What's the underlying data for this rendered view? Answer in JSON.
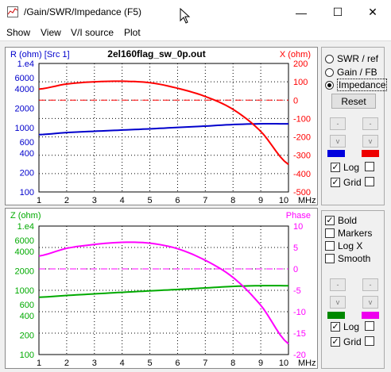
{
  "window": {
    "title": "/Gain/SWR/Impedance (F5)",
    "minimize": "—",
    "maximize": "☐",
    "close": "✕"
  },
  "menu": [
    "Show",
    "View",
    "V/I source",
    "Plot"
  ],
  "top_chart": {
    "filename": "2el160flag_sw_0p.out",
    "left_label": "R (ohm) [Src 1]",
    "right_label": "X (ohm)",
    "left_ticks": [
      "1.e4",
      "6000",
      "4000",
      "2000",
      "1000",
      "600",
      "400",
      "200",
      "100"
    ],
    "right_ticks": [
      "200",
      "100",
      "0",
      "-100",
      "-200",
      "-300",
      "-400",
      "-500"
    ],
    "x_ticks": [
      "1",
      "2",
      "3",
      "4",
      "5",
      "6",
      "7",
      "8",
      "9",
      "10"
    ],
    "x_unit": "MHz",
    "colors": {
      "left": "#0000cc",
      "right": "#ff0000"
    }
  },
  "bottom_chart": {
    "left_label": "Z (ohm)",
    "right_label": "Phase",
    "left_ticks": [
      "1.e4",
      "6000",
      "4000",
      "2000",
      "1000",
      "600",
      "400",
      "200",
      "100"
    ],
    "right_ticks": [
      "10",
      "5",
      "0",
      "-5",
      "-10",
      "-15",
      "-20"
    ],
    "x_ticks": [
      "1",
      "2",
      "3",
      "4",
      "5",
      "6",
      "7",
      "8",
      "9",
      "10"
    ],
    "x_unit": "MHz",
    "colors": {
      "left": "#00aa00",
      "right": "#ff00ff"
    }
  },
  "chart_data": [
    {
      "type": "line",
      "x": [
        1,
        2,
        3,
        4,
        5,
        6,
        7,
        8,
        9,
        10
      ],
      "xlim": [
        1,
        10
      ],
      "series": [
        {
          "axis": "left",
          "color": "#0000cc",
          "values": [
            780,
            840,
            880,
            920,
            960,
            1010,
            1060,
            1120,
            1150,
            1150
          ]
        },
        {
          "axis": "right",
          "color": "#ff0000",
          "values": [
            60,
            88,
            100,
            103,
            95,
            65,
            20,
            -50,
            -170,
            -350
          ]
        },
        {
          "axis": "right",
          "color": "#ff0000",
          "style": "dashed",
          "values": [
            0,
            0,
            0,
            0,
            0,
            0,
            0,
            0,
            0,
            0
          ]
        }
      ],
      "left_scale": "log",
      "left_ylim": [
        100,
        10000
      ],
      "right_ylim": [
        -500,
        200
      ],
      "grid": true
    },
    {
      "type": "line",
      "x": [
        1,
        2,
        3,
        4,
        5,
        6,
        7,
        8,
        9,
        10
      ],
      "xlim": [
        1,
        10
      ],
      "series": [
        {
          "axis": "left",
          "color": "#00aa00",
          "values": [
            780,
            830,
            880,
            930,
            980,
            1030,
            1090,
            1150,
            1180,
            1180
          ]
        },
        {
          "axis": "right",
          "color": "#ff00ff",
          "values": [
            3,
            4.8,
            5.7,
            6.2,
            6,
            4.7,
            2,
            -2,
            -8.5,
            -17.5
          ]
        },
        {
          "axis": "right",
          "color": "#ff00ff",
          "style": "dashed",
          "values": [
            0,
            0,
            0,
            0,
            0,
            0,
            0,
            0,
            0,
            0
          ]
        }
      ],
      "left_scale": "log",
      "left_ylim": [
        100,
        10000
      ],
      "right_ylim": [
        -20,
        10
      ],
      "grid": true
    }
  ],
  "right_top": {
    "radios": [
      {
        "label": "SWR / ref",
        "on": false
      },
      {
        "label": "Gain / FB",
        "on": false
      },
      {
        "label": "Impedance",
        "on": true
      }
    ],
    "reset": "Reset",
    "step_up": "-",
    "step_down": "v",
    "swatch_left": "#0000dd",
    "swatch_right": "#ee0000",
    "log_label": "Log",
    "grid_label": "Grid",
    "check_mark": "✓"
  },
  "right_bottom": {
    "checks": [
      {
        "label": "Bold",
        "on": true
      },
      {
        "label": "Markers",
        "on": false
      },
      {
        "label": "Log X",
        "on": false
      },
      {
        "label": "Smooth",
        "on": false
      }
    ],
    "step_up": "-",
    "step_down": "v",
    "swatch_left": "#008800",
    "swatch_right": "#ee00ee",
    "log_label": "Log",
    "grid_label": "Grid",
    "check_mark": "✓"
  }
}
